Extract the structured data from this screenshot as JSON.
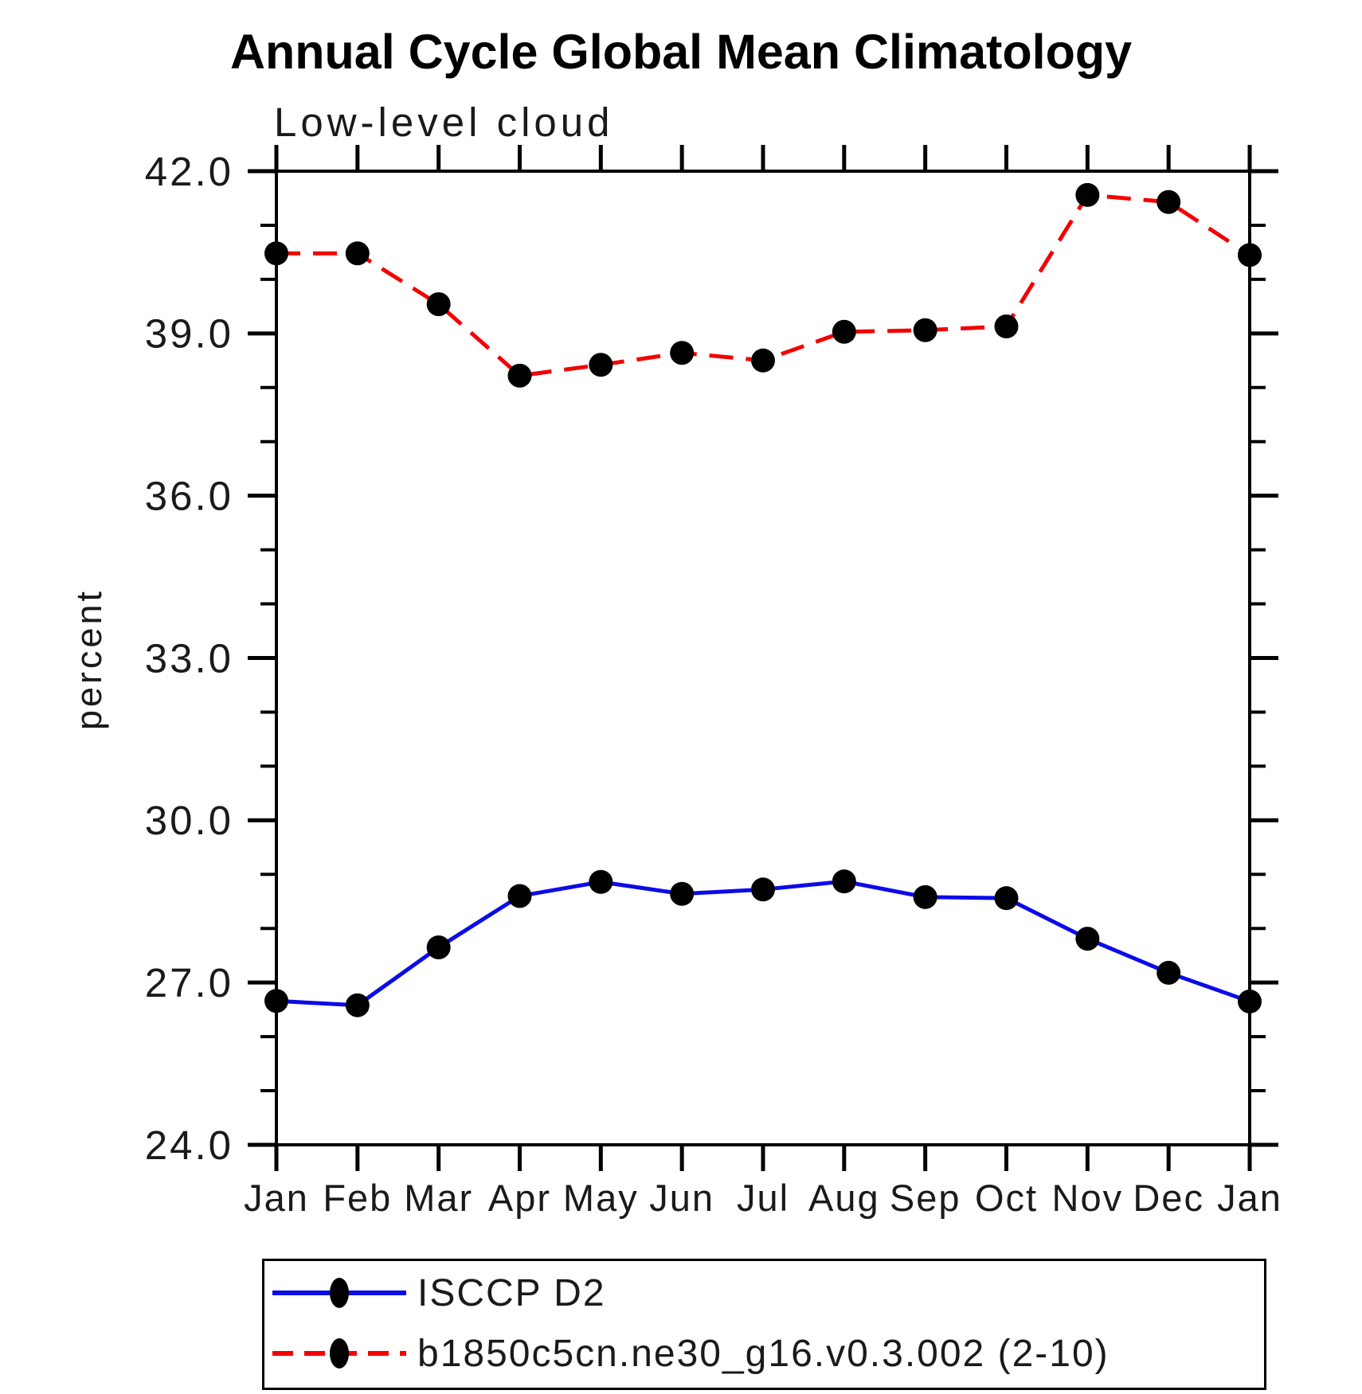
{
  "chart_data": {
    "type": "line",
    "title": "Annual Cycle Global Mean Climatology",
    "subtitle": "Low-level cloud",
    "xlabel": "",
    "ylabel": "percent",
    "categories": [
      "Jan",
      "Feb",
      "Mar",
      "Apr",
      "May",
      "Jun",
      "Jul",
      "Aug",
      "Sep",
      "Oct",
      "Nov",
      "Dec",
      "Jan"
    ],
    "ylim": [
      24.0,
      42.0
    ],
    "ytick_major_values": [
      24.0,
      27.0,
      30.0,
      33.0,
      36.0,
      39.0,
      42.0
    ],
    "ytick_labels": [
      "24.0",
      "27.0",
      "30.0",
      "33.0",
      "36.0",
      "39.0",
      "42.0"
    ],
    "ytick_minor_step": 1.0,
    "grid": false,
    "legend_position": "bottom-left-box",
    "frame_color": "#000000",
    "marker_color": "#000000",
    "series": [
      {
        "name": "ISCCP D2",
        "style": "solid",
        "color": "#0b0be8",
        "marker": "circle",
        "values": [
          26.66,
          26.58,
          27.65,
          28.6,
          28.86,
          28.64,
          28.72,
          28.87,
          28.58,
          28.56,
          27.81,
          27.18,
          26.65
        ]
      },
      {
        "name": "b1850c5cn.ne30_g16.v0.3.002 (2-10)",
        "style": "dashed",
        "color": "#f40000",
        "marker": "circle",
        "values": [
          40.48,
          40.48,
          39.54,
          38.22,
          38.42,
          38.64,
          38.5,
          39.03,
          39.06,
          39.13,
          41.56,
          41.43,
          40.45
        ]
      }
    ]
  }
}
